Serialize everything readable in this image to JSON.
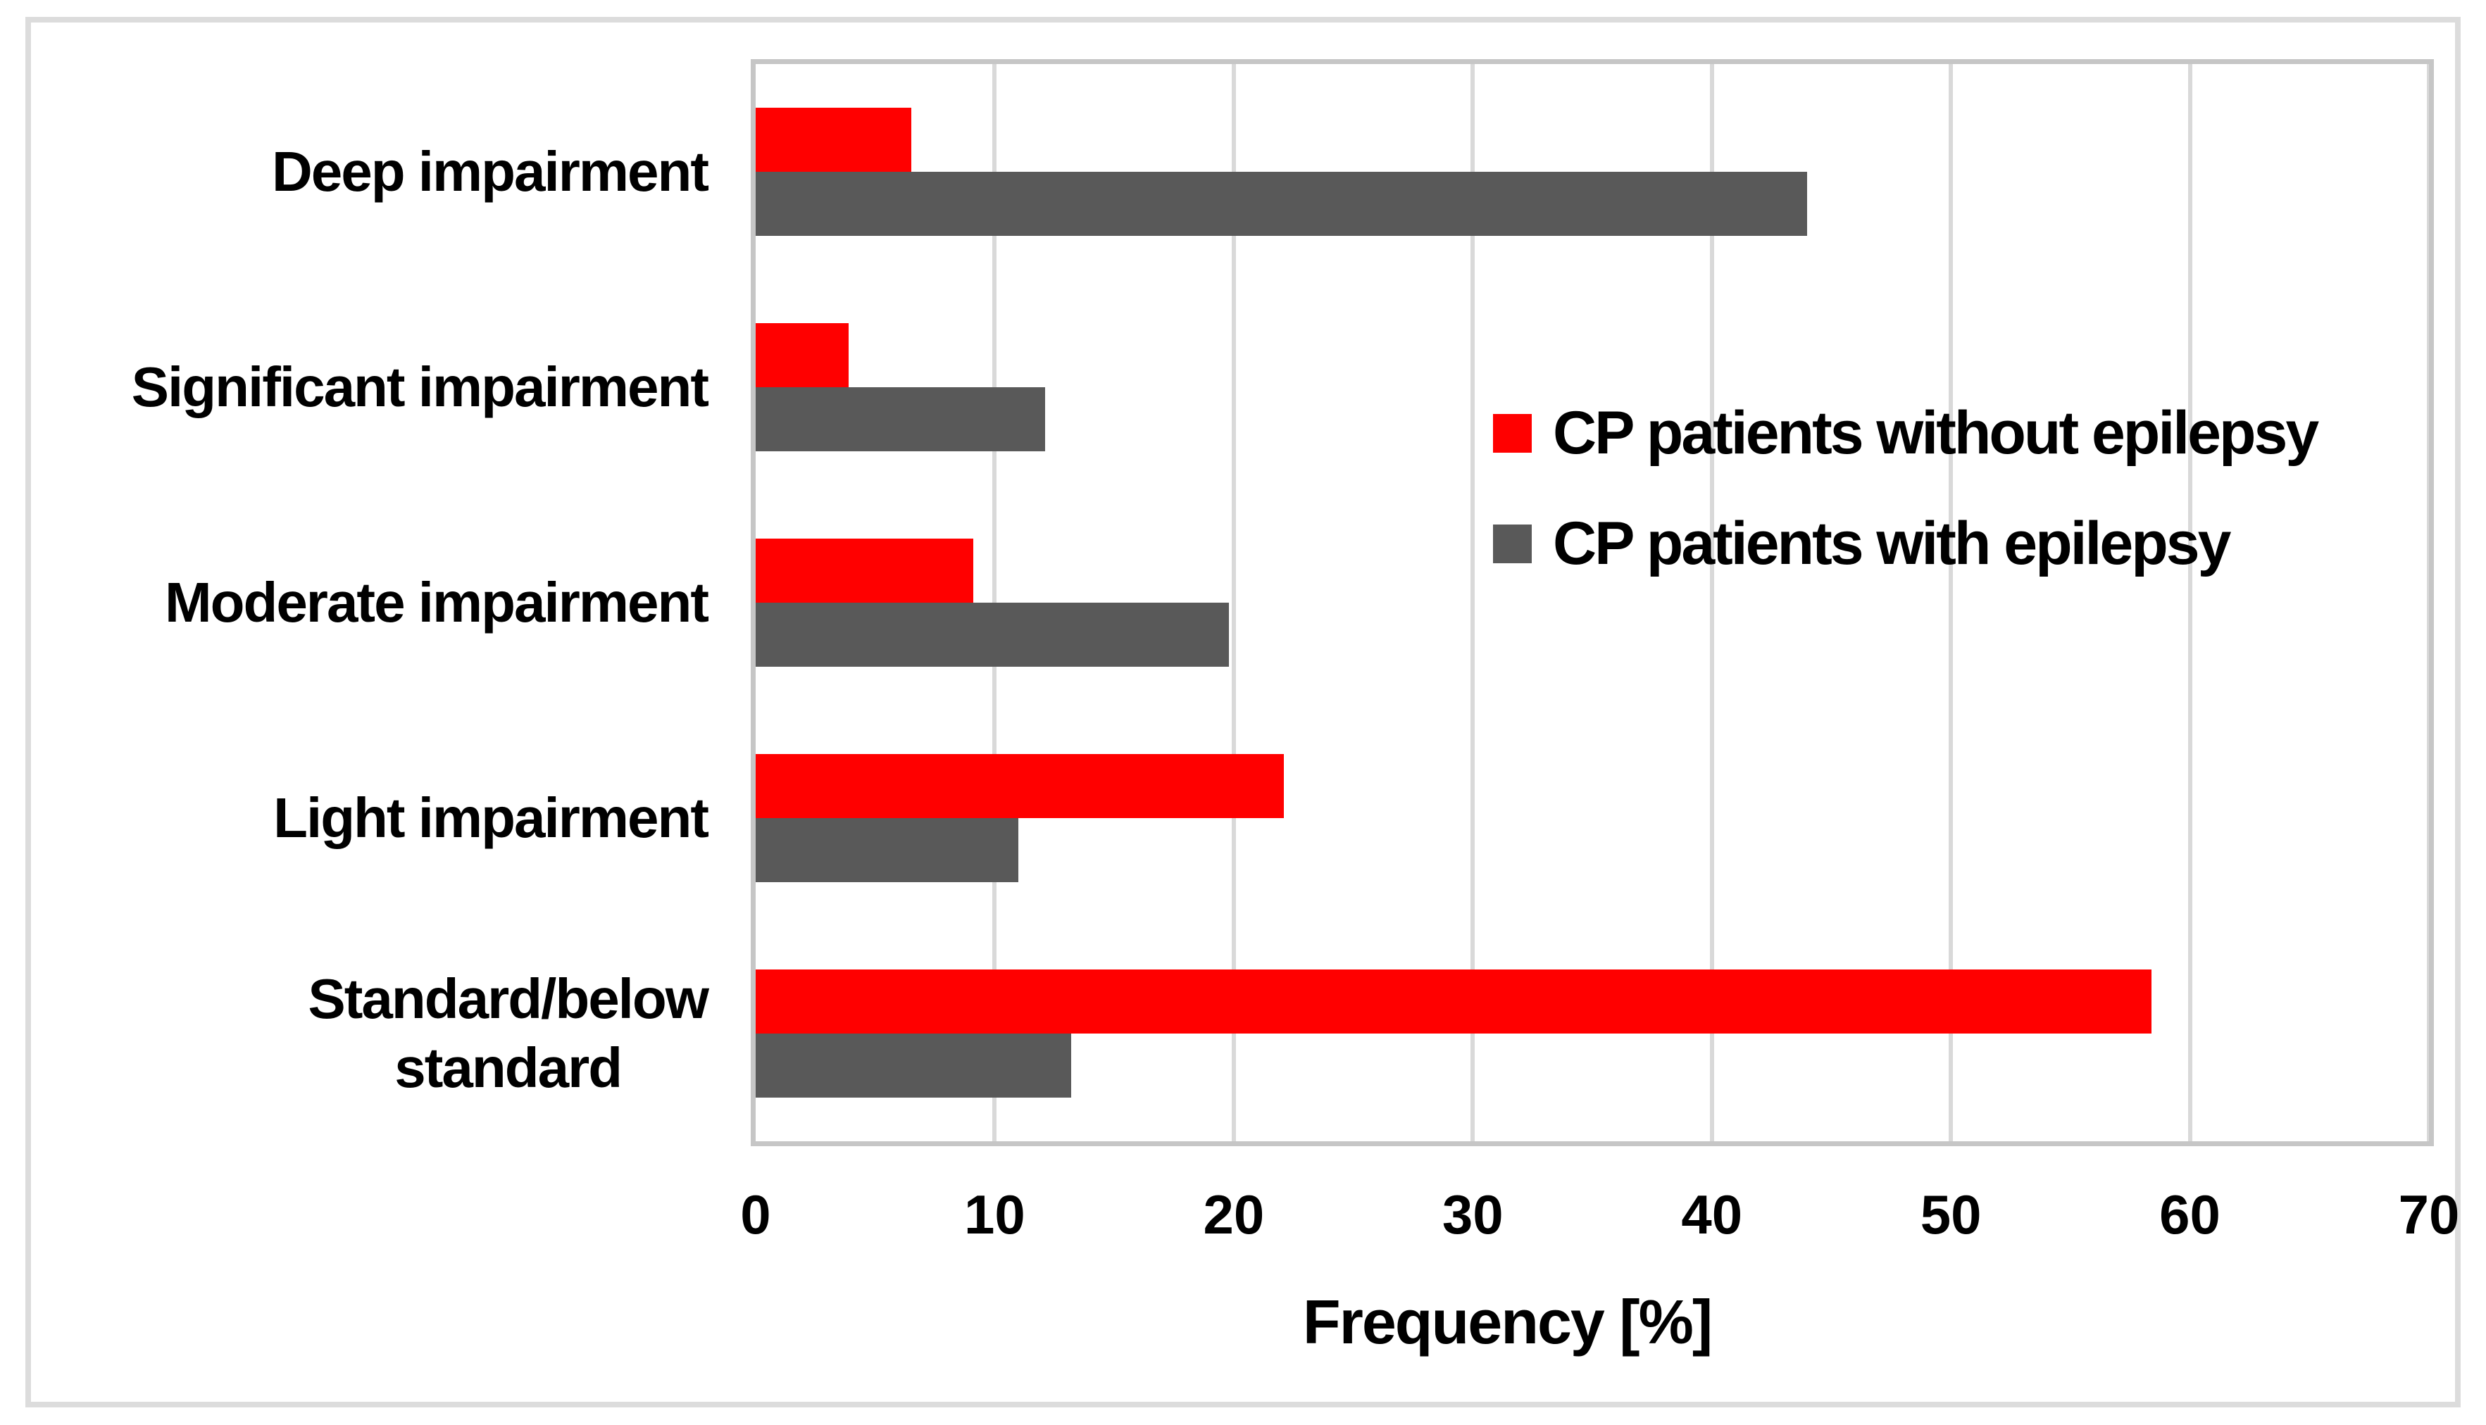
{
  "figure": {
    "background": "#ffffff",
    "frame_color": "#dcdcdc"
  },
  "chart_data": {
    "type": "bar",
    "orientation": "horizontal",
    "title": "",
    "xlabel": "Frequency [%]",
    "xlim": [
      0,
      70
    ],
    "xticks": [
      "0",
      "10",
      "20",
      "30",
      "40",
      "50",
      "60",
      "70"
    ],
    "grid": true,
    "gridline_color": "#d9d9d9",
    "plot_border_color": "#c6c6c6",
    "text_color": "#000000",
    "categories": [
      "Deep impairment",
      "Significant impairment",
      "Moderate impairment",
      "Light impairment",
      "Standard/below standard"
    ],
    "category_label_lines": [
      [
        "Deep impairment"
      ],
      [
        "Significant impairment"
      ],
      [
        "Moderate impairment"
      ],
      [
        "Light impairment"
      ],
      [
        "Standard/below",
        "standard"
      ]
    ],
    "series": [
      {
        "name": "CP patients without epilepsy",
        "color": "#ff0000",
        "values": [
          6.5,
          3.9,
          9.1,
          22.1,
          58.4
        ]
      },
      {
        "name": "CP patients with epilepsy",
        "color": "#595959",
        "values": [
          44.0,
          12.1,
          19.8,
          11.0,
          13.2
        ]
      }
    ],
    "legend_position": "center-right"
  }
}
